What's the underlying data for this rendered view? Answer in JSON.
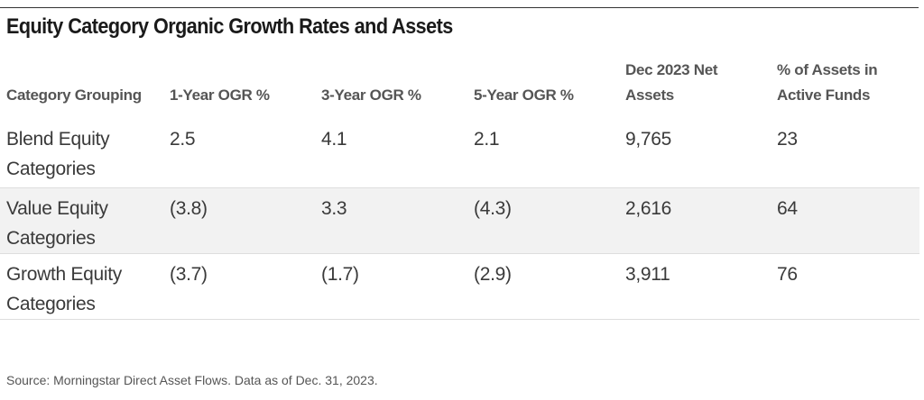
{
  "title": "Equity Category Organic Growth Rates and Assets",
  "table": {
    "headers": [
      "Category Grouping",
      "1-Year OGR %",
      "3-Year OGR %",
      "5-Year OGR %",
      "Dec 2023 Net\nAssets",
      "% of Assets in\nActive Funds"
    ],
    "rows": [
      {
        "cells": [
          "Blend Equity Categories",
          "2.5",
          "4.1",
          "2.1",
          "9,765",
          "23"
        ]
      },
      {
        "cells": [
          "Value Equity Categories",
          "(3.8)",
          "3.3",
          "(4.3)",
          "2,616",
          "64"
        ]
      },
      {
        "cells": [
          "Growth Equity Categories",
          "(3.7)",
          "(1.7)",
          "(2.9)",
          "3,911",
          "76"
        ]
      }
    ]
  },
  "source": "Source: Morningstar Direct Asset Flows. Data as of Dec. 31, 2023.",
  "colors": {
    "text": "#3a3a3a",
    "header_text": "#555555",
    "shaded_row": "#f2f2f2",
    "rule": "#333333"
  }
}
